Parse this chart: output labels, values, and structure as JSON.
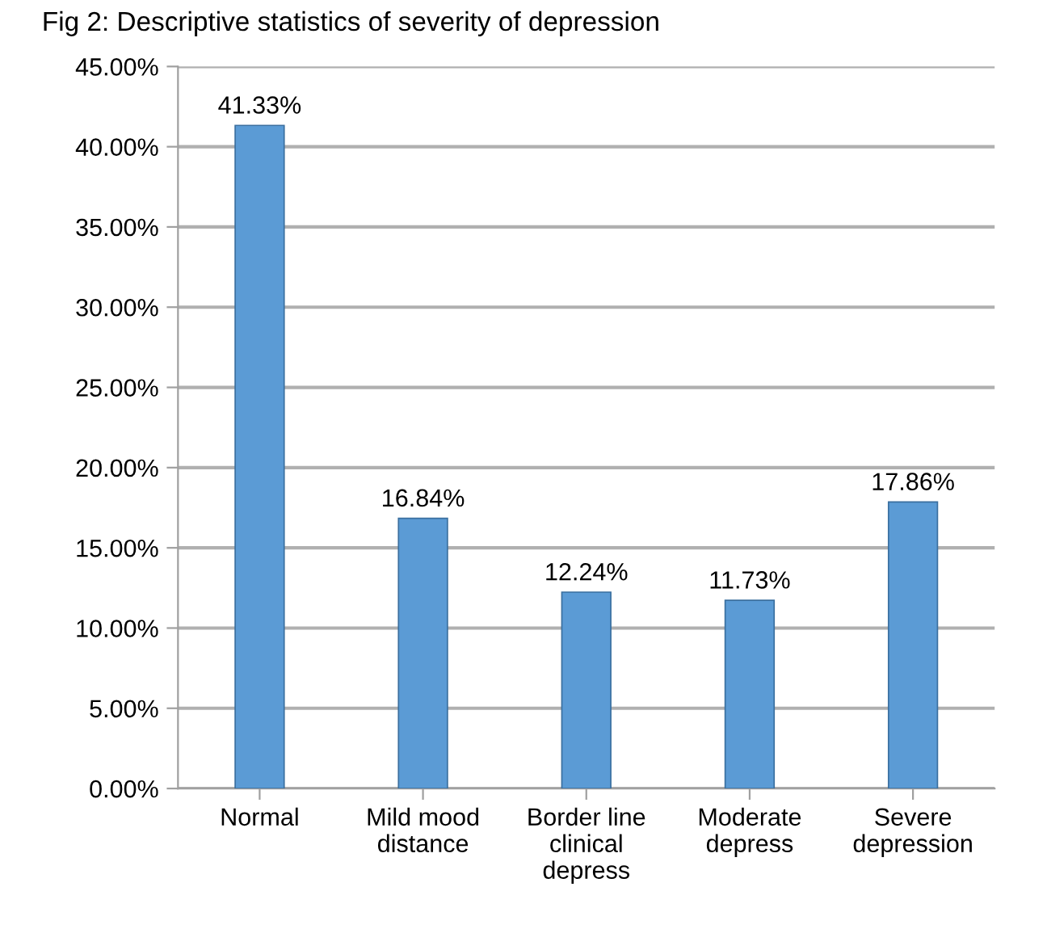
{
  "chart_data": {
    "type": "bar",
    "title": "Fig 2: Descriptive statistics of severity of depression",
    "categories": [
      "Normal",
      "Mild mood\ndistance",
      "Border line\nclinical\ndepress",
      "Moderate\ndepress",
      "Severe\ndepression"
    ],
    "values": [
      41.33,
      16.84,
      12.24,
      11.73,
      17.86
    ],
    "value_labels": [
      "41.33%",
      "16.84%",
      "12.24%",
      "11.73%",
      "17.86%"
    ],
    "color": "#5b9bd5",
    "ylim": [
      0,
      45
    ],
    "yticks": [
      {
        "value": 0,
        "label": "0.00%"
      },
      {
        "value": 5,
        "label": "5.00%"
      },
      {
        "value": 10,
        "label": "10.00%"
      },
      {
        "value": 15,
        "label": "15.00%"
      },
      {
        "value": 20,
        "label": "20.00%"
      },
      {
        "value": 25,
        "label": "25.00%"
      },
      {
        "value": 30,
        "label": "30.00%"
      },
      {
        "value": 35,
        "label": "35.00%"
      },
      {
        "value": 40,
        "label": "40.00%"
      },
      {
        "value": 45,
        "label": "45.00%"
      }
    ],
    "grid": "y"
  }
}
